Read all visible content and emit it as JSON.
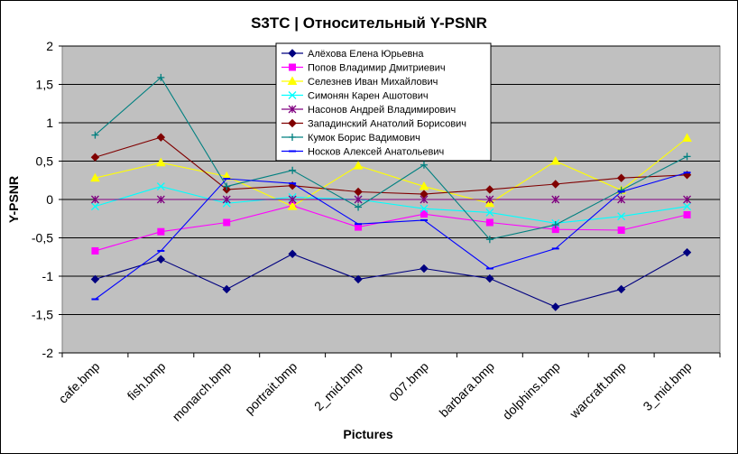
{
  "chart_data": {
    "type": "line",
    "title": "S3TC | Относительный Y-PSNR",
    "xlabel": "Pictures",
    "ylabel": "Y-PSNR",
    "ylim": [
      -2,
      2
    ],
    "yticks": [
      -2,
      -1.5,
      -1,
      -0.5,
      0,
      0.5,
      1,
      1.5,
      2
    ],
    "ytick_labels": [
      "-2",
      "-1,5",
      "-1",
      "-0,5",
      "0",
      "0,5",
      "1",
      "1,5",
      "2"
    ],
    "grid": true,
    "plot_background": "#c0c0c0",
    "legend_position": "top-right",
    "categories": [
      "cafe.bmp",
      "fish.bmp",
      "monarch.bmp",
      "portrait.bmp",
      "2_mid.bmp",
      "007.bmp",
      "barbara.bmp",
      "dolphins.bmp",
      "warcraft.bmp",
      "3_mid.bmp"
    ],
    "series": [
      {
        "name": "Алёхова Елена Юрьевна",
        "color": "#000080",
        "marker": "diamond",
        "values": [
          -1.04,
          -0.78,
          -1.17,
          -0.71,
          -1.04,
          -0.9,
          -1.03,
          -1.4,
          -1.17,
          -0.69
        ]
      },
      {
        "name": "Попов Владимир Дмитриевич",
        "color": "#ff00ff",
        "marker": "square",
        "values": [
          -0.67,
          -0.42,
          -0.3,
          -0.08,
          -0.36,
          -0.19,
          -0.3,
          -0.39,
          -0.4,
          -0.2
        ]
      },
      {
        "name": "Селезнев Иван Михайлович",
        "color": "#ffff00",
        "marker": "triangle",
        "values": [
          0.28,
          0.48,
          0.3,
          -0.09,
          0.44,
          0.17,
          -0.05,
          0.5,
          0.12,
          0.8
        ]
      },
      {
        "name": "Симонян Карен Ашотович",
        "color": "#00ffff",
        "marker": "x",
        "values": [
          -0.09,
          0.17,
          -0.05,
          0.03,
          0.0,
          -0.12,
          -0.17,
          -0.31,
          -0.22,
          -0.09
        ]
      },
      {
        "name": "Насонов Андрей Владимирович",
        "color": "#800080",
        "marker": "star",
        "values": [
          0,
          0,
          0,
          0,
          0,
          0,
          0,
          0,
          0,
          0
        ]
      },
      {
        "name": "Западинский Анатолий Борисович",
        "color": "#800000",
        "marker": "diamond",
        "values": [
          0.55,
          0.81,
          0.13,
          0.18,
          0.1,
          0.07,
          0.13,
          0.2,
          0.28,
          0.32
        ]
      },
      {
        "name": "Кумок Борис Вадимович",
        "color": "#008080",
        "marker": "plus",
        "values": [
          0.84,
          1.59,
          0.17,
          0.38,
          -0.1,
          0.45,
          -0.52,
          -0.33,
          0.12,
          0.56
        ]
      },
      {
        "name": "Носков Алексей Анатольевич",
        "color": "#0000ff",
        "marker": "dash",
        "values": [
          -1.3,
          -0.67,
          0.27,
          0.21,
          -0.32,
          -0.27,
          -0.9,
          -0.64,
          0.1,
          0.35
        ]
      }
    ]
  }
}
